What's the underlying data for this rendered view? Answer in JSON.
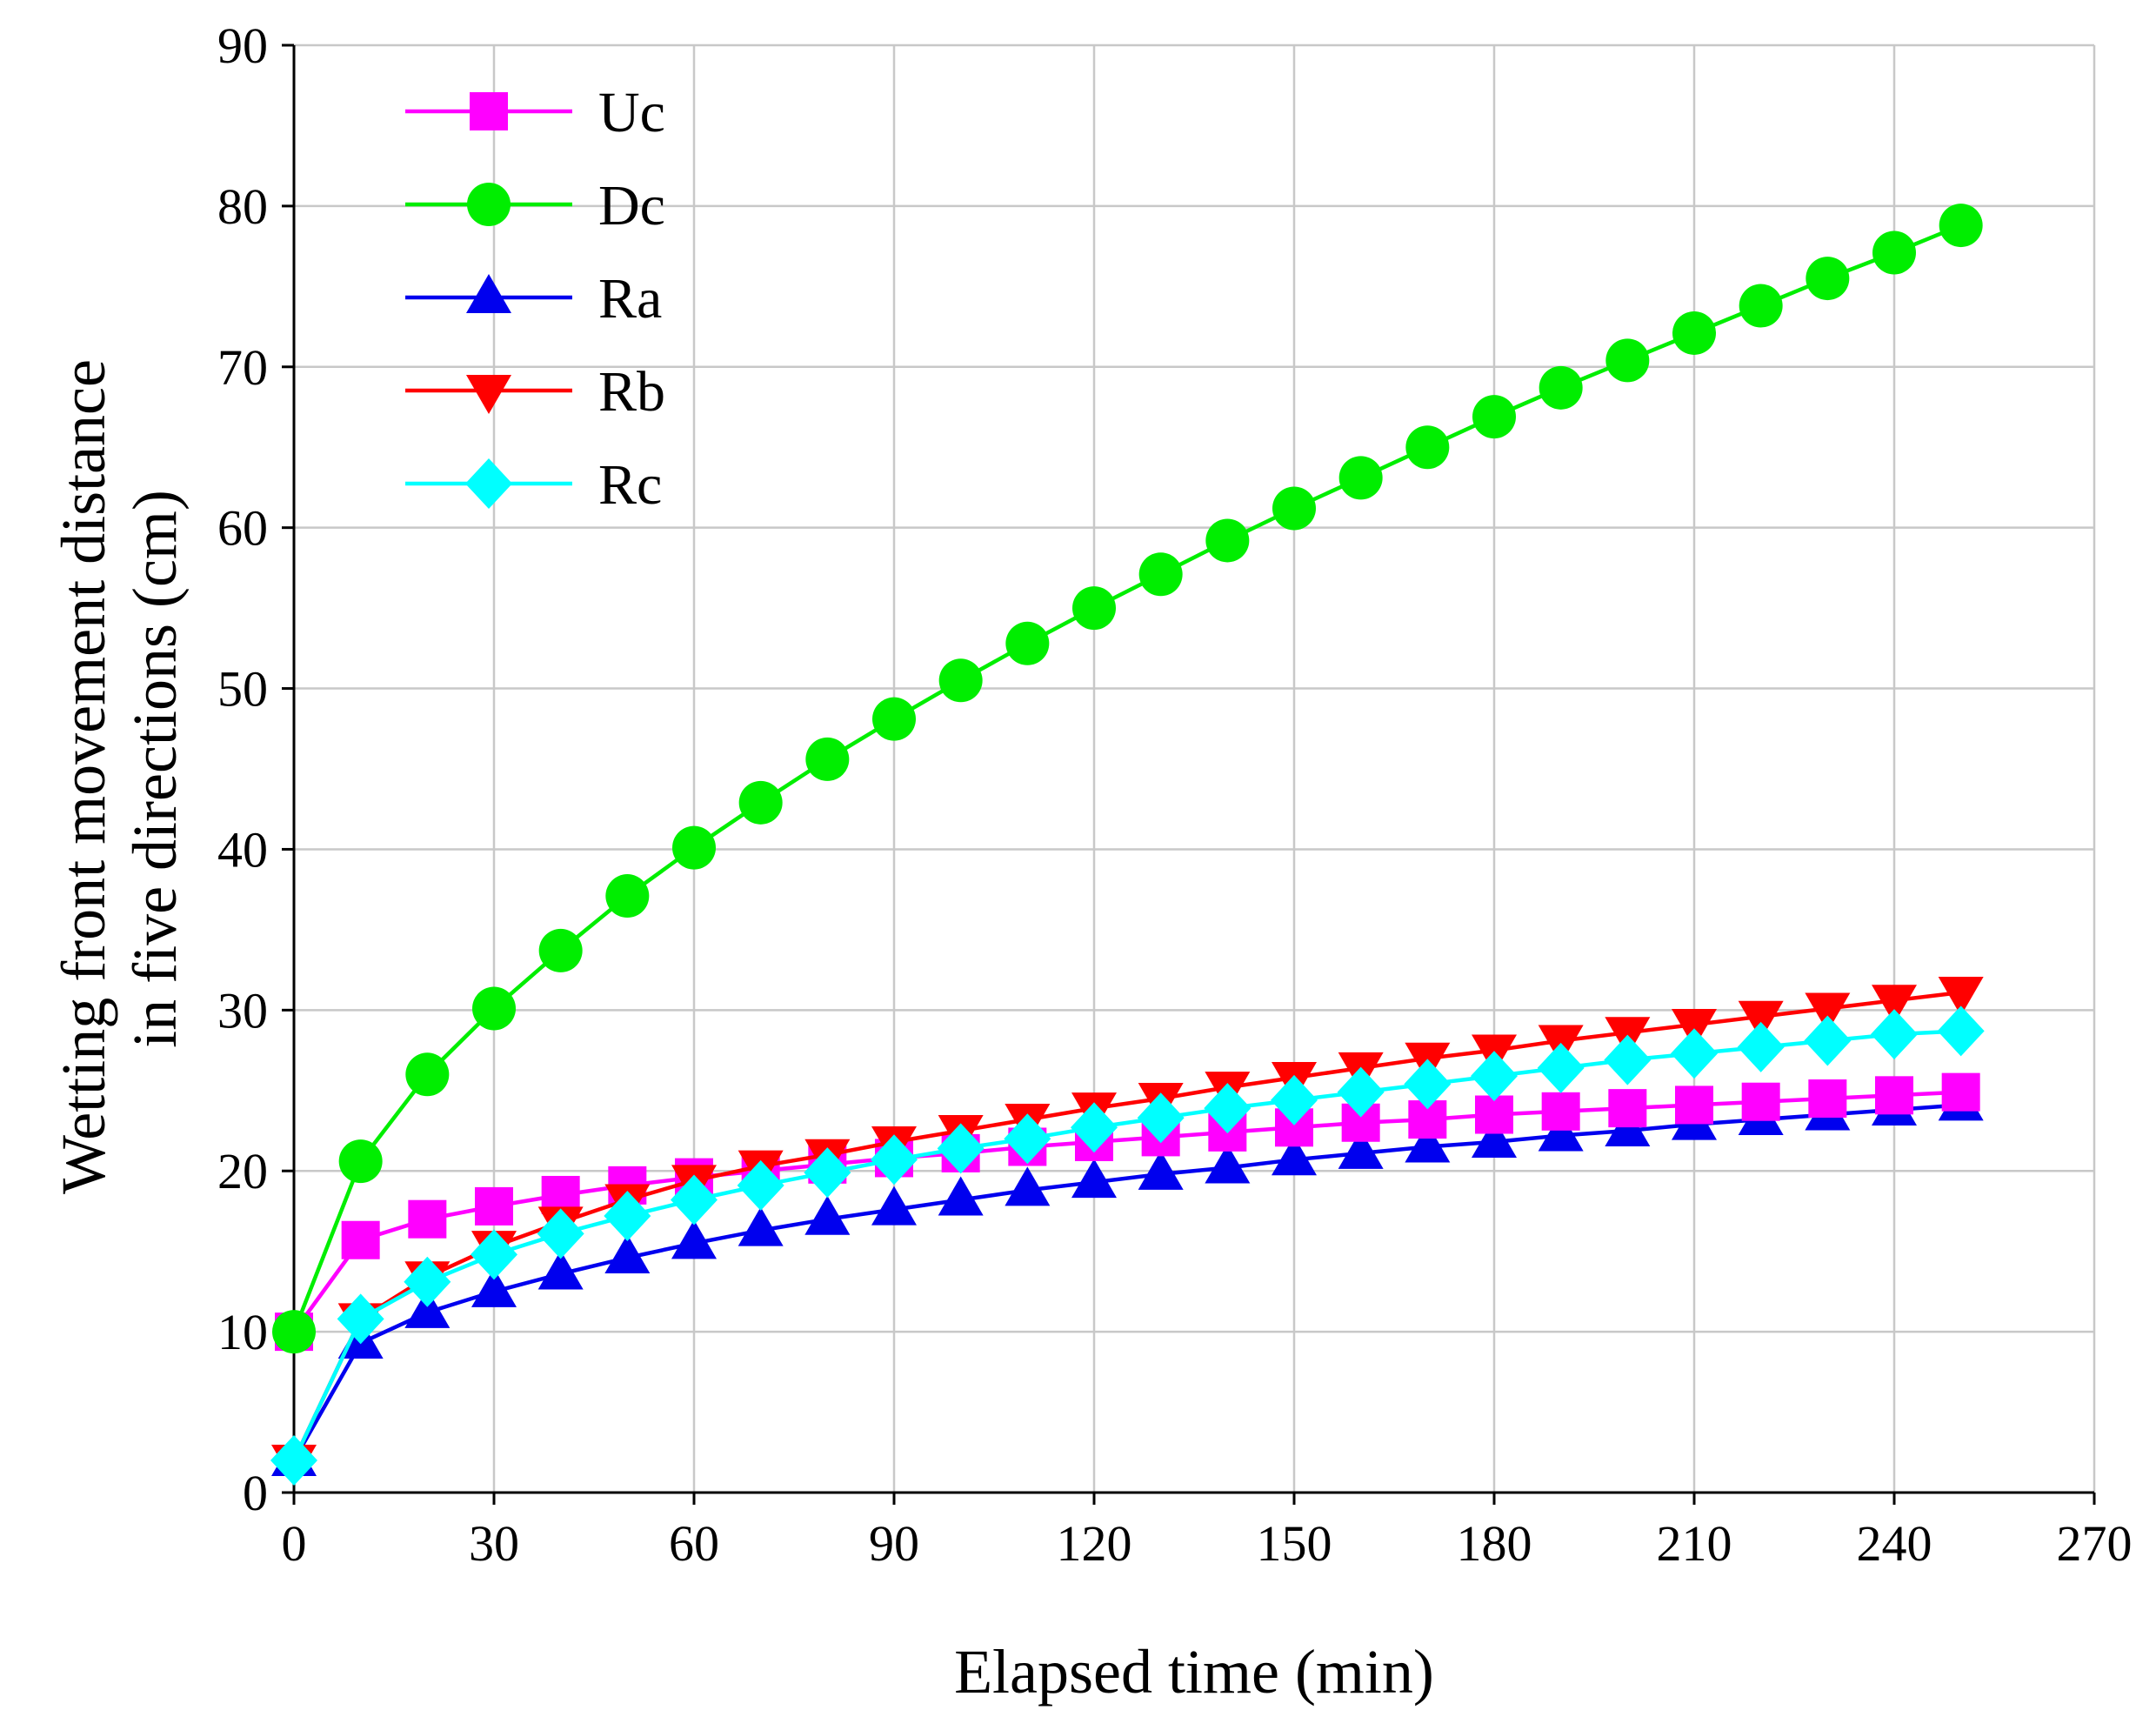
{
  "chart_data": {
    "type": "line",
    "title": "",
    "xlabel": "Elapsed time (min)",
    "ylabel_lines": [
      "Wetting front movement distance",
      "in five directions (cm)"
    ],
    "xlim": [
      0,
      270
    ],
    "ylim": [
      0,
      90
    ],
    "xticks": [
      0,
      30,
      60,
      90,
      120,
      150,
      180,
      210,
      240,
      270
    ],
    "yticks": [
      0,
      10,
      20,
      30,
      40,
      50,
      60,
      70,
      80,
      90
    ],
    "grid": true,
    "legend_position": "top-left",
    "x": [
      0,
      10,
      20,
      30,
      40,
      50,
      60,
      70,
      80,
      90,
      100,
      110,
      120,
      130,
      140,
      150,
      160,
      170,
      180,
      190,
      200,
      210,
      220,
      230,
      240,
      250
    ],
    "series": [
      {
        "name": "Uc",
        "color": "#ff00ff",
        "marker": "square",
        "values": [
          10.0,
          15.7,
          17.0,
          17.8,
          18.5,
          19.1,
          19.6,
          20.0,
          20.4,
          20.8,
          21.1,
          21.5,
          21.8,
          22.1,
          22.4,
          22.7,
          23.0,
          23.2,
          23.5,
          23.7,
          23.9,
          24.1,
          24.3,
          24.5,
          24.7,
          24.9
        ]
      },
      {
        "name": "Dc",
        "color": "#00ee00",
        "marker": "circle",
        "values": [
          10.0,
          20.6,
          26.0,
          30.1,
          33.7,
          37.1,
          40.1,
          42.9,
          45.6,
          48.1,
          50.5,
          52.8,
          55.0,
          57.1,
          59.2,
          61.2,
          63.1,
          65.0,
          66.9,
          68.7,
          70.4,
          72.1,
          73.8,
          75.5,
          77.1,
          78.8
        ]
      },
      {
        "name": "Ra",
        "color": "#0000ee",
        "marker": "triangle-up",
        "values": [
          2.0,
          9.3,
          11.2,
          12.5,
          13.6,
          14.6,
          15.5,
          16.3,
          17.0,
          17.6,
          18.2,
          18.8,
          19.3,
          19.8,
          20.2,
          20.7,
          21.1,
          21.5,
          21.8,
          22.2,
          22.5,
          22.9,
          23.2,
          23.5,
          23.8,
          24.1
        ]
      },
      {
        "name": "Rb",
        "color": "#ff0000",
        "marker": "triangle-down",
        "values": [
          2.0,
          10.8,
          13.4,
          15.3,
          16.8,
          18.2,
          19.4,
          20.3,
          21.0,
          21.8,
          22.5,
          23.2,
          23.9,
          24.5,
          25.2,
          25.8,
          26.4,
          27.0,
          27.5,
          28.1,
          28.6,
          29.1,
          29.6,
          30.1,
          30.6,
          31.1
        ]
      },
      {
        "name": "Rc",
        "color": "#00ffff",
        "marker": "diamond",
        "values": [
          2.0,
          10.8,
          13.1,
          14.8,
          16.1,
          17.2,
          18.2,
          19.1,
          19.9,
          20.7,
          21.4,
          22.0,
          22.7,
          23.3,
          23.9,
          24.4,
          24.9,
          25.4,
          25.9,
          26.4,
          26.9,
          27.3,
          27.7,
          28.1,
          28.5,
          28.7
        ]
      }
    ]
  }
}
